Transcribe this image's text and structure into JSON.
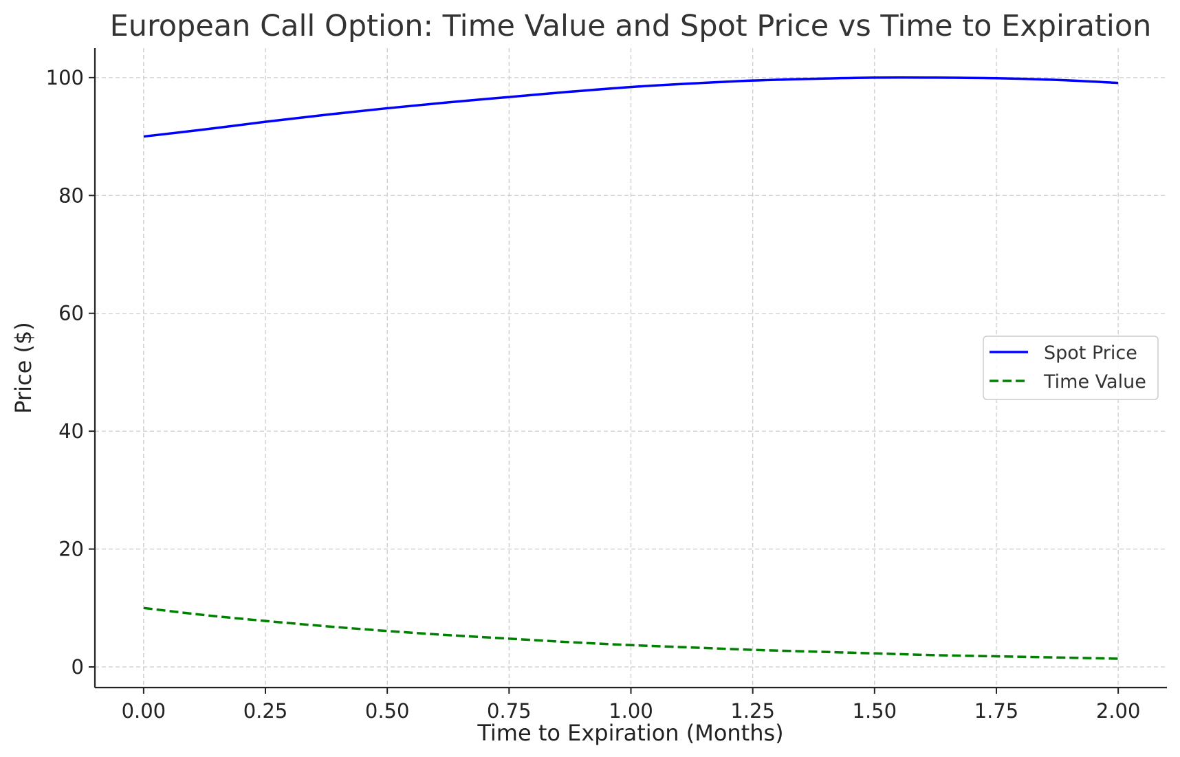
{
  "chart_data": {
    "type": "line",
    "title": "European Call Option: Time Value and Spot Price vs Time to Expiration",
    "xlabel": "Time to Expiration (Months)",
    "ylabel": "Price ($)",
    "xlim": [
      -0.1,
      2.1
    ],
    "ylim": [
      -3.5,
      105
    ],
    "xticks": [
      0.0,
      0.25,
      0.5,
      0.75,
      1.0,
      1.25,
      1.5,
      1.75,
      2.0
    ],
    "xtick_labels": [
      "0.00",
      "0.25",
      "0.50",
      "0.75",
      "1.00",
      "1.25",
      "1.50",
      "1.75",
      "2.00"
    ],
    "yticks": [
      0,
      20,
      40,
      60,
      80,
      100
    ],
    "ytick_labels": [
      "0",
      "20",
      "40",
      "60",
      "80",
      "100"
    ],
    "grid": true,
    "legend_position": "right",
    "x": [
      0.0,
      0.125,
      0.25,
      0.375,
      0.5,
      0.625,
      0.75,
      0.875,
      1.0,
      1.125,
      1.25,
      1.375,
      1.5,
      1.625,
      1.75,
      1.875,
      2.0
    ],
    "series": [
      {
        "name": "Spot Price",
        "color": "#0000ff",
        "style": "solid",
        "values": [
          90.0,
          91.2,
          92.5,
          93.7,
          94.8,
          95.8,
          96.7,
          97.6,
          98.4,
          99.0,
          99.5,
          99.8,
          100.0,
          100.0,
          99.9,
          99.6,
          99.1
        ]
      },
      {
        "name": "Time Value",
        "color": "#008000",
        "style": "dashed",
        "values": [
          10.0,
          8.8,
          7.8,
          6.9,
          6.1,
          5.4,
          4.8,
          4.2,
          3.7,
          3.3,
          2.9,
          2.6,
          2.3,
          2.0,
          1.8,
          1.6,
          1.4
        ]
      }
    ]
  }
}
